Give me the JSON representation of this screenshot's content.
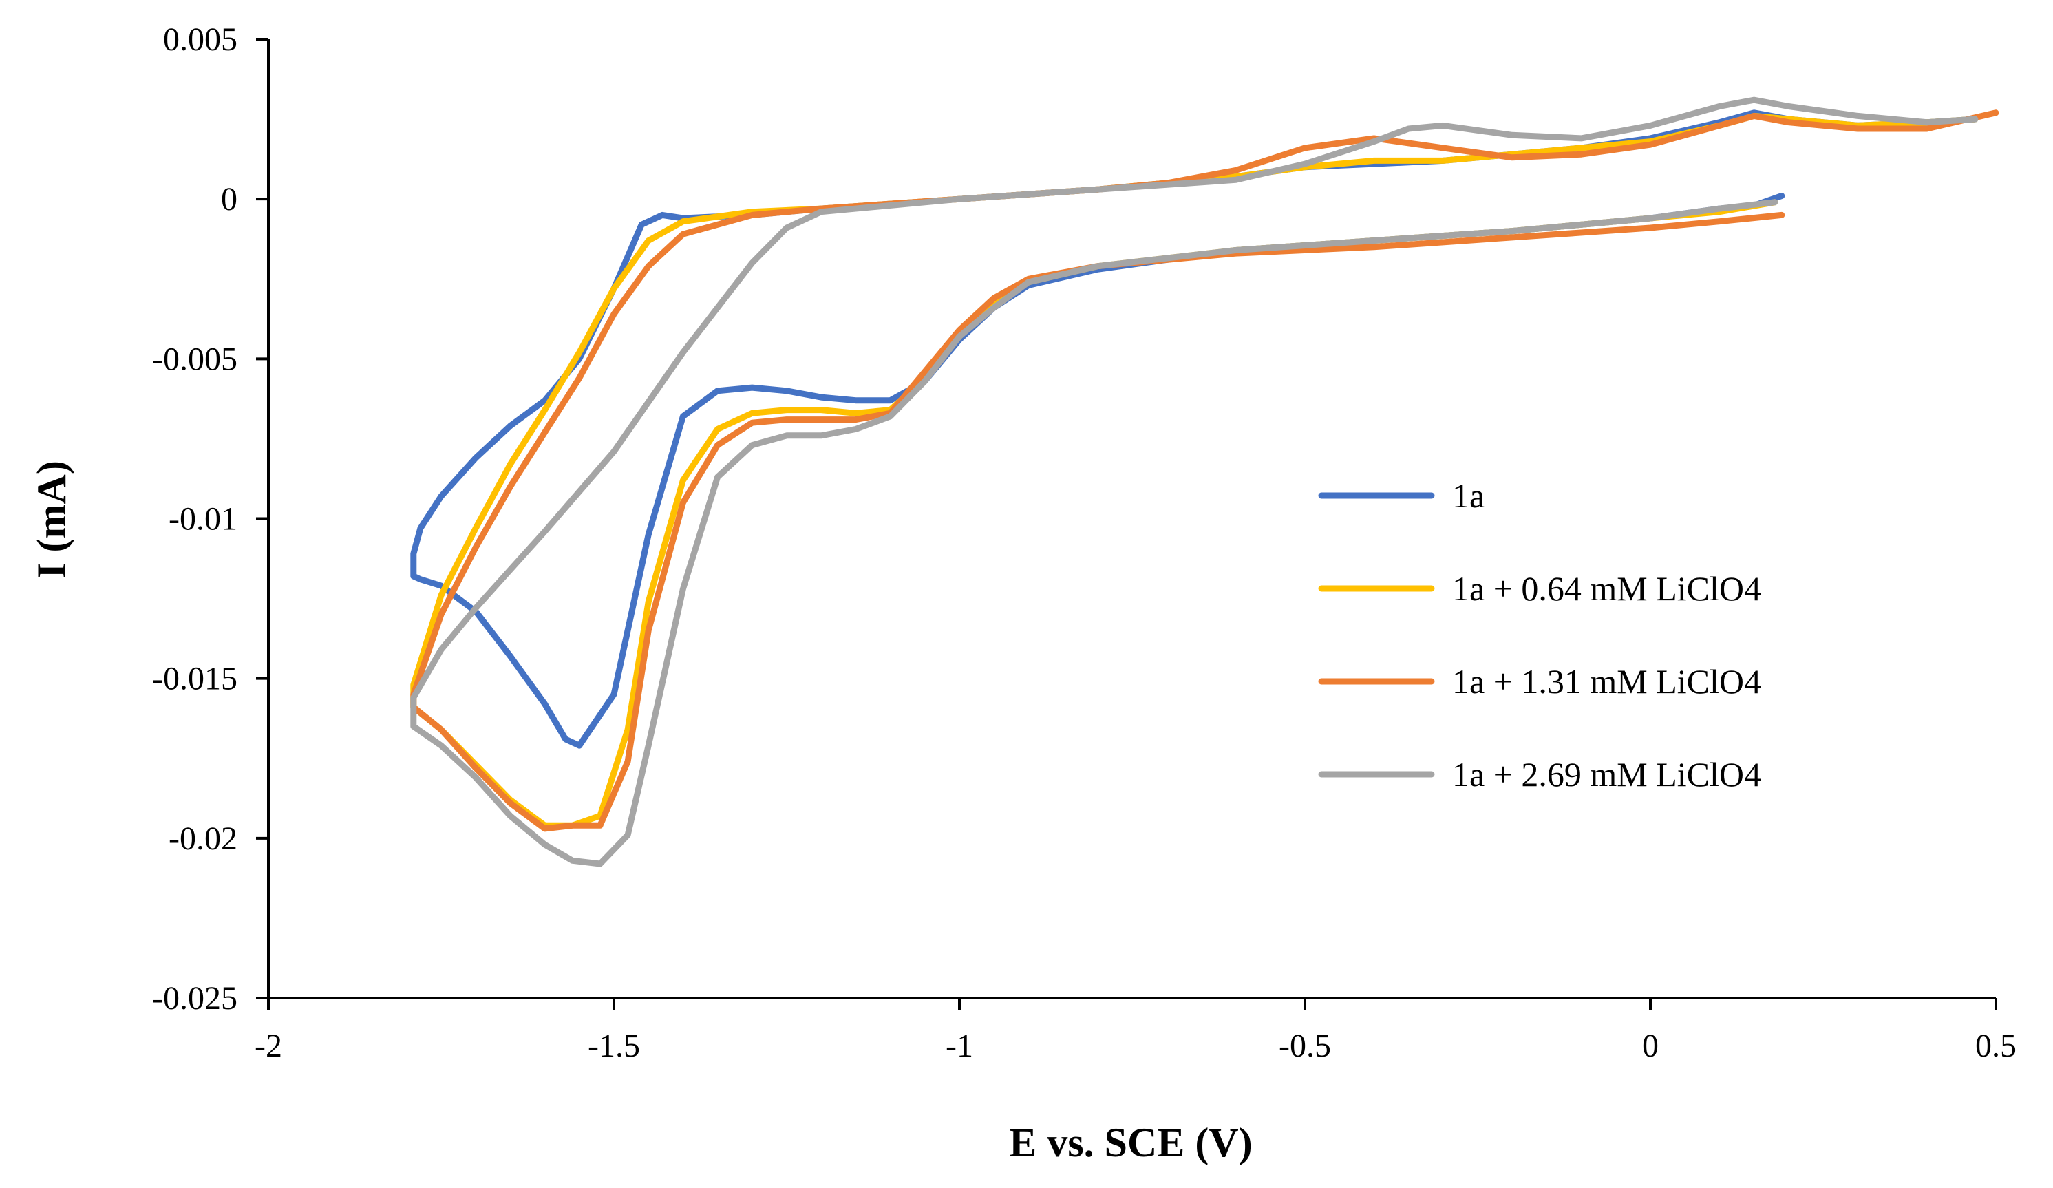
{
  "chart_data": {
    "type": "line",
    "title": "",
    "xlabel": "E vs. SCE (V)",
    "ylabel": "I (mA)",
    "xlim": [
      -2,
      0.5
    ],
    "ylim": [
      -0.025,
      0.005
    ],
    "xticks": [
      "-2",
      "-1.5",
      "-1",
      "-0.5",
      "0",
      "0.5"
    ],
    "yticks": [
      "0.005",
      "0",
      "-0.005",
      "-0.01",
      "-0.015",
      "-0.02",
      "-0.025"
    ],
    "grid": false,
    "legend_position": "right",
    "series": [
      {
        "name": "1a",
        "color": "#4472C4",
        "x": [
          0.19,
          0.15,
          0.1,
          0.0,
          -0.2,
          -0.4,
          -0.6,
          -0.8,
          -0.9,
          -0.95,
          -1.0,
          -1.05,
          -1.1,
          -1.15,
          -1.2,
          -1.25,
          -1.3,
          -1.35,
          -1.4,
          -1.45,
          -1.5,
          -1.55,
          -1.57,
          -1.6,
          -1.65,
          -1.7,
          -1.75,
          -1.78,
          -1.79,
          -1.79,
          -1.78,
          -1.75,
          -1.7,
          -1.65,
          -1.6,
          -1.55,
          -1.5,
          -1.46,
          -1.43,
          -1.4,
          -1.3,
          -1.2,
          -1.0,
          -0.8,
          -0.6,
          -0.5,
          -0.4,
          -0.3,
          -0.2,
          -0.1,
          0.0,
          0.1,
          0.15,
          0.2,
          0.3,
          0.4,
          0.47
        ],
        "y": [
          0.0001,
          -0.0002,
          -0.0003,
          -0.0006,
          -0.001,
          -0.0013,
          -0.0016,
          -0.0022,
          -0.0027,
          -0.0034,
          -0.0044,
          -0.0057,
          -0.0063,
          -0.0063,
          -0.0062,
          -0.006,
          -0.0059,
          -0.006,
          -0.0068,
          -0.0105,
          -0.0155,
          -0.0171,
          -0.0169,
          -0.0158,
          -0.0143,
          -0.0129,
          -0.0121,
          -0.0119,
          -0.0118,
          -0.0111,
          -0.0103,
          -0.0093,
          -0.0081,
          -0.0071,
          -0.0063,
          -0.005,
          -0.0028,
          -0.0008,
          -0.0005,
          -0.0006,
          -0.0005,
          -0.0003,
          0.0,
          0.0003,
          0.0007,
          0.001,
          0.0011,
          0.0012,
          0.0014,
          0.0016,
          0.0019,
          0.0024,
          0.0027,
          0.0025,
          0.0023,
          0.0024,
          0.0025
        ]
      },
      {
        "name": "1a + 0.64 mM LiClO4",
        "color": "#FFC000",
        "x": [
          0.18,
          0.1,
          0.0,
          -0.2,
          -0.4,
          -0.6,
          -0.8,
          -0.9,
          -0.95,
          -1.0,
          -1.05,
          -1.1,
          -1.15,
          -1.2,
          -1.25,
          -1.3,
          -1.35,
          -1.4,
          -1.45,
          -1.48,
          -1.52,
          -1.56,
          -1.6,
          -1.65,
          -1.7,
          -1.75,
          -1.79,
          -1.79,
          -1.75,
          -1.7,
          -1.65,
          -1.6,
          -1.55,
          -1.5,
          -1.45,
          -1.4,
          -1.3,
          -1.2,
          -1.0,
          -0.8,
          -0.6,
          -0.5,
          -0.4,
          -0.3,
          -0.2,
          -0.1,
          0.0,
          0.1,
          0.15,
          0.2,
          0.3,
          0.4,
          0.47
        ],
        "y": [
          -0.0001,
          -0.0004,
          -0.0006,
          -0.001,
          -0.0013,
          -0.0016,
          -0.0021,
          -0.0026,
          -0.0033,
          -0.0043,
          -0.0056,
          -0.0066,
          -0.0067,
          -0.0066,
          -0.0066,
          -0.0067,
          -0.0072,
          -0.0088,
          -0.0126,
          -0.0166,
          -0.0193,
          -0.0196,
          -0.0196,
          -0.0188,
          -0.0177,
          -0.0166,
          -0.0159,
          -0.0152,
          -0.0124,
          -0.0103,
          -0.0083,
          -0.0066,
          -0.0048,
          -0.0028,
          -0.0013,
          -0.0007,
          -0.0004,
          -0.0003,
          0.0,
          0.0003,
          0.0007,
          0.001,
          0.0012,
          0.0012,
          0.0014,
          0.0016,
          0.0018,
          0.0023,
          0.0026,
          0.0025,
          0.0023,
          0.0024,
          0.0025
        ]
      },
      {
        "name": "1a + 1.31 mM LiClO4",
        "color": "#ED7D31",
        "x": [
          0.19,
          0.1,
          0.0,
          -0.2,
          -0.4,
          -0.6,
          -0.8,
          -0.9,
          -0.95,
          -1.0,
          -1.05,
          -1.1,
          -1.15,
          -1.2,
          -1.25,
          -1.3,
          -1.35,
          -1.4,
          -1.45,
          -1.48,
          -1.52,
          -1.56,
          -1.6,
          -1.65,
          -1.7,
          -1.75,
          -1.79,
          -1.79,
          -1.75,
          -1.7,
          -1.65,
          -1.6,
          -1.55,
          -1.5,
          -1.45,
          -1.4,
          -1.3,
          -1.2,
          -1.0,
          -0.8,
          -0.7,
          -0.6,
          -0.5,
          -0.4,
          -0.3,
          -0.2,
          -0.1,
          0.0,
          0.1,
          0.15,
          0.2,
          0.3,
          0.4,
          0.5
        ],
        "y": [
          -0.0005,
          -0.0007,
          -0.0009,
          -0.0012,
          -0.0015,
          -0.0017,
          -0.0021,
          -0.0025,
          -0.0031,
          -0.0041,
          -0.0054,
          -0.0067,
          -0.0069,
          -0.0069,
          -0.0069,
          -0.007,
          -0.0077,
          -0.0095,
          -0.0135,
          -0.0176,
          -0.0196,
          -0.0196,
          -0.0197,
          -0.0189,
          -0.0178,
          -0.0166,
          -0.0159,
          -0.0155,
          -0.013,
          -0.0109,
          -0.009,
          -0.0073,
          -0.0056,
          -0.0036,
          -0.0021,
          -0.0011,
          -0.0005,
          -0.0003,
          0.0,
          0.0003,
          0.0005,
          0.0009,
          0.0016,
          0.0019,
          0.0016,
          0.0013,
          0.0014,
          0.0017,
          0.0023,
          0.0026,
          0.0024,
          0.0022,
          0.0022,
          0.0027
        ]
      },
      {
        "name": "1a + 2.69 mM LiClO4",
        "color": "#A5A5A5",
        "x": [
          0.18,
          0.1,
          0.0,
          -0.2,
          -0.4,
          -0.6,
          -0.8,
          -0.9,
          -0.95,
          -1.0,
          -1.05,
          -1.1,
          -1.15,
          -1.2,
          -1.25,
          -1.3,
          -1.35,
          -1.4,
          -1.45,
          -1.48,
          -1.52,
          -1.56,
          -1.6,
          -1.65,
          -1.7,
          -1.75,
          -1.79,
          -1.79,
          -1.75,
          -1.7,
          -1.6,
          -1.5,
          -1.4,
          -1.3,
          -1.25,
          -1.2,
          -1.0,
          -0.8,
          -0.6,
          -0.5,
          -0.4,
          -0.35,
          -0.3,
          -0.2,
          -0.1,
          0.0,
          0.1,
          0.15,
          0.2,
          0.3,
          0.4,
          0.47
        ],
        "y": [
          -0.0001,
          -0.0003,
          -0.0006,
          -0.001,
          -0.0013,
          -0.0016,
          -0.0021,
          -0.0026,
          -0.0034,
          -0.0043,
          -0.0057,
          -0.0068,
          -0.0072,
          -0.0074,
          -0.0074,
          -0.0077,
          -0.0087,
          -0.0122,
          -0.0171,
          -0.0199,
          -0.0208,
          -0.0207,
          -0.0202,
          -0.0193,
          -0.0181,
          -0.0171,
          -0.0165,
          -0.0156,
          -0.0141,
          -0.0128,
          -0.0104,
          -0.0079,
          -0.0048,
          -0.002,
          -0.0009,
          -0.0004,
          0.0,
          0.0003,
          0.0006,
          0.0011,
          0.0018,
          0.0022,
          0.0023,
          0.002,
          0.0019,
          0.0023,
          0.0029,
          0.0031,
          0.0029,
          0.0026,
          0.0024,
          0.0025
        ]
      }
    ]
  }
}
